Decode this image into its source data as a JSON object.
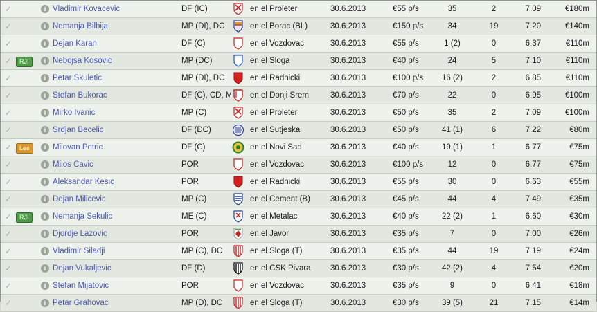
{
  "players": [
    {
      "name": "Vladimir Kovacevic",
      "position": "DF (IC)",
      "club": "en el Proleter",
      "expires": "30.6.2013",
      "wage": "€55 p/s",
      "apps": "35",
      "goals": "2",
      "rating": "7.09",
      "value": "€180m",
      "badge": "",
      "crest": "proleter"
    },
    {
      "name": "Nemanja Bilbija",
      "position": "MP (DI), DC",
      "club": "en el Borac (BL)",
      "expires": "30.6.2013",
      "wage": "€150 p/s",
      "apps": "34",
      "goals": "19",
      "rating": "7.20",
      "value": "€140m",
      "badge": "",
      "crest": "borac"
    },
    {
      "name": "Dejan Karan",
      "position": "DF (C)",
      "club": "en el Vozdovac",
      "expires": "30.6.2013",
      "wage": "€55 p/s",
      "apps": "1 (2)",
      "goals": "0",
      "rating": "6.37",
      "value": "€110m",
      "badge": "",
      "crest": "vozdovac"
    },
    {
      "name": "Nebojsa Kosovic",
      "position": "MP (DC)",
      "club": "en el Sloga",
      "expires": "30.6.2013",
      "wage": "€40 p/s",
      "apps": "24",
      "goals": "5",
      "rating": "7.10",
      "value": "€110m",
      "badge": "RJI",
      "crest": "sloga"
    },
    {
      "name": "Petar Skuletic",
      "position": "MP (DI), DC",
      "club": "en el Radnicki",
      "expires": "30.6.2013",
      "wage": "€100 p/s",
      "apps": "16 (2)",
      "goals": "2",
      "rating": "6.85",
      "value": "€110m",
      "badge": "",
      "crest": "radnicki"
    },
    {
      "name": "Stefan Bukorac",
      "position": "DF (C), CD, ME ...",
      "club": "en el Donji Srem",
      "expires": "30.6.2013",
      "wage": "€70 p/s",
      "apps": "22",
      "goals": "0",
      "rating": "6.95",
      "value": "€100m",
      "badge": "",
      "crest": "donjisrem"
    },
    {
      "name": "Mirko Ivanic",
      "position": "MP (C)",
      "club": "en el Proleter",
      "expires": "30.6.2013",
      "wage": "€50 p/s",
      "apps": "35",
      "goals": "2",
      "rating": "7.09",
      "value": "€100m",
      "badge": "",
      "crest": "proleter"
    },
    {
      "name": "Srdjan Becelic",
      "position": "DF (DC)",
      "club": "en el Sutjeska",
      "expires": "30.6.2013",
      "wage": "€50 p/s",
      "apps": "41 (1)",
      "goals": "6",
      "rating": "7.22",
      "value": "€80m",
      "badge": "",
      "crest": "sutjeska"
    },
    {
      "name": "Milovan Petric",
      "position": "DF (C)",
      "club": "en el Novi Sad",
      "expires": "30.6.2013",
      "wage": "€40 p/s",
      "apps": "19 (1)",
      "goals": "1",
      "rating": "6.77",
      "value": "€75m",
      "badge": "Les",
      "crest": "novisad"
    },
    {
      "name": "Milos Cavic",
      "position": "POR",
      "club": "en el Vozdovac",
      "expires": "30.6.2013",
      "wage": "€100 p/s",
      "apps": "12",
      "goals": "0",
      "rating": "6.77",
      "value": "€75m",
      "badge": "",
      "crest": "vozdovac"
    },
    {
      "name": "Aleksandar Kesic",
      "position": "POR",
      "club": "en el Radnicki",
      "expires": "30.6.2013",
      "wage": "€55 p/s",
      "apps": "30",
      "goals": "0",
      "rating": "6.63",
      "value": "€55m",
      "badge": "",
      "crest": "radnicki"
    },
    {
      "name": "Dejan Milicevic",
      "position": "MP (C)",
      "club": "en el Cement (B)",
      "expires": "30.6.2013",
      "wage": "€45 p/s",
      "apps": "44",
      "goals": "4",
      "rating": "7.49",
      "value": "€35m",
      "badge": "",
      "crest": "cement"
    },
    {
      "name": "Nemanja Sekulic",
      "position": "ME (C)",
      "club": "en el Metalac",
      "expires": "30.6.2013",
      "wage": "€40 p/s",
      "apps": "22 (2)",
      "goals": "1",
      "rating": "6.60",
      "value": "€30m",
      "badge": "RJI",
      "crest": "metalac"
    },
    {
      "name": "Djordje Lazovic",
      "position": "POR",
      "club": "en el Javor",
      "expires": "30.6.2013",
      "wage": "€35 p/s",
      "apps": "7",
      "goals": "0",
      "rating": "7.00",
      "value": "€26m",
      "badge": "",
      "crest": "javor"
    },
    {
      "name": "Vladimir Siladji",
      "position": "MP (C), DC",
      "club": "en el Sloga (T)",
      "expires": "30.6.2013",
      "wage": "€35 p/s",
      "apps": "44",
      "goals": "19",
      "rating": "7.19",
      "value": "€24m",
      "badge": "",
      "crest": "slogat"
    },
    {
      "name": "Dejan Vukaljevic",
      "position": "DF (D)",
      "club": "en el CSK Pivara",
      "expires": "30.6.2013",
      "wage": "€30 p/s",
      "apps": "42 (2)",
      "goals": "4",
      "rating": "7.54",
      "value": "€20m",
      "badge": "",
      "crest": "csk"
    },
    {
      "name": "Stefan Mijatovic",
      "position": "POR",
      "club": "en el Vozdovac",
      "expires": "30.6.2013",
      "wage": "€35 p/s",
      "apps": "9",
      "goals": "0",
      "rating": "6.41",
      "value": "€18m",
      "badge": "",
      "crest": "vozdovac"
    },
    {
      "name": "Petar Grahovac",
      "position": "MP (D), DC",
      "club": "en el Sloga (T)",
      "expires": "30.6.2013",
      "wage": "€30 p/s",
      "apps": "39 (5)",
      "goals": "21",
      "rating": "7.15",
      "value": "€14m",
      "badge": "",
      "crest": "slogat"
    }
  ],
  "icons": {
    "check": "check-icon",
    "info": "info-icon",
    "crest": "club-crest-icon"
  },
  "colors": {
    "badge_rji": "#4e9c47",
    "badge_les": "#d9962b",
    "name_link": "#4b57b6"
  }
}
